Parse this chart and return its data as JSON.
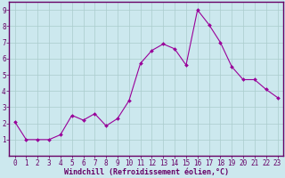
{
  "x": [
    0,
    1,
    2,
    3,
    4,
    5,
    6,
    7,
    8,
    9,
    10,
    11,
    12,
    13,
    14,
    15,
    16,
    17,
    18,
    19,
    20,
    21,
    22,
    23
  ],
  "y": [
    2.1,
    1.0,
    1.0,
    1.0,
    1.3,
    2.5,
    2.2,
    2.6,
    1.85,
    2.3,
    3.4,
    5.7,
    6.5,
    6.9,
    6.6,
    5.6,
    9.0,
    8.1,
    7.0,
    5.5,
    4.7,
    4.7,
    4.1,
    3.6
  ],
  "line_color": "#990099",
  "marker": "D",
  "marker_size": 2.0,
  "bg_color": "#cce8ee",
  "grid_color": "#aacccc",
  "xlabel": "Windchill (Refroidissement éolien,°C)",
  "xlabel_color": "#660066",
  "tick_color": "#660066",
  "axis_color": "#660066",
  "xlim": [
    -0.5,
    23.5
  ],
  "ylim": [
    0,
    9.5
  ],
  "yticks": [
    1,
    2,
    3,
    4,
    5,
    6,
    7,
    8,
    9
  ],
  "xticks": [
    0,
    1,
    2,
    3,
    4,
    5,
    6,
    7,
    8,
    9,
    10,
    11,
    12,
    13,
    14,
    15,
    16,
    17,
    18,
    19,
    20,
    21,
    22,
    23
  ],
  "tick_fontsize": 5.5,
  "xlabel_fontsize": 6.0,
  "linewidth": 0.8
}
